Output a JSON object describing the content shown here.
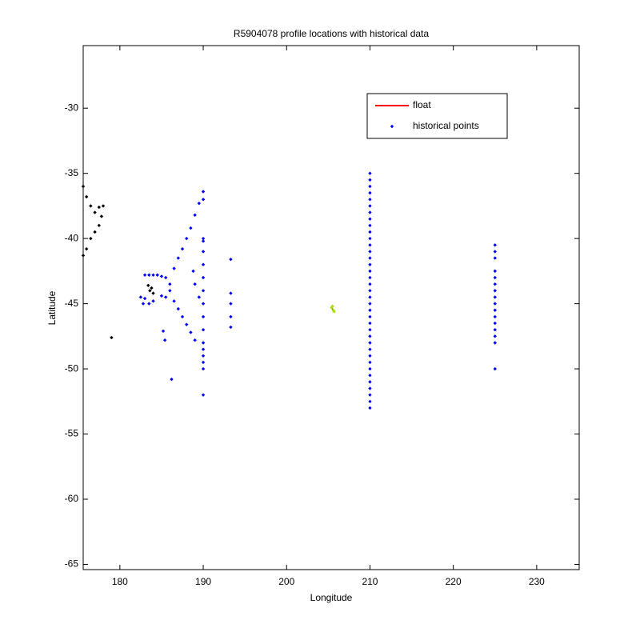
{
  "chart_data": {
    "type": "scatter",
    "title": "R5904078 profile locations with historical data",
    "x_label": "Longitude",
    "y_label": "Latitude",
    "xlim": [
      175.6,
      235.1
    ],
    "ylim": [
      -65.4,
      -25.2
    ],
    "xticks": [
      180,
      190,
      200,
      210,
      220,
      230
    ],
    "yticks": [
      -30,
      -35,
      -40,
      -45,
      -50,
      -55,
      -60,
      -65
    ],
    "legend_position": "upper right",
    "series": [
      {
        "name": "float",
        "color": "#ff0000",
        "style": "line",
        "x": [
          205.4,
          205.6,
          205.5
        ],
        "y": [
          -45.3,
          -45.5,
          -45.4
        ]
      },
      {
        "name": "historical points",
        "color": "#0000ff",
        "style": "marker",
        "x": [
          210,
          210,
          210,
          210,
          210,
          210,
          210,
          210,
          210,
          210,
          210,
          210,
          210,
          210,
          210,
          210,
          210,
          210,
          210,
          210,
          210,
          210,
          210,
          210,
          210,
          210,
          210,
          210,
          210,
          210,
          210,
          210,
          210,
          210,
          210,
          210,
          210,
          225,
          225,
          225,
          225,
          225,
          225,
          225,
          225,
          225,
          225,
          225,
          225,
          225,
          225,
          225,
          225,
          190,
          190,
          190,
          190,
          190,
          190,
          190,
          190,
          190,
          190,
          190,
          190,
          190,
          190,
          190,
          190,
          190,
          193.3,
          193.3,
          193.3,
          193.3,
          193.3,
          186.5,
          187,
          187.5,
          188,
          188.5,
          189,
          189.5,
          186.5,
          187,
          187.5,
          188,
          188.5,
          189,
          183,
          183.5,
          184,
          184.5,
          185,
          185.5,
          186,
          186,
          185.5,
          185,
          182.5,
          183,
          183.5,
          184,
          185.2,
          185.4,
          186.2,
          188.8,
          189,
          189.5,
          182.8
        ],
        "y": [
          -35,
          -35.5,
          -36,
          -36.5,
          -37,
          -37.5,
          -38,
          -38.5,
          -39,
          -39.5,
          -40,
          -40.5,
          -41,
          -41.5,
          -42,
          -42.5,
          -43,
          -43.5,
          -44,
          -44.5,
          -45,
          -45.5,
          -46,
          -46.5,
          -47,
          -47.5,
          -48,
          -48.5,
          -49,
          -49.5,
          -50,
          -50.5,
          -51,
          -51.5,
          -52,
          -52.5,
          -53,
          -40.5,
          -41,
          -41.5,
          -42.5,
          -43,
          -43.5,
          -44,
          -44.5,
          -45,
          -45.5,
          -46,
          -46.5,
          -47,
          -47.5,
          -48,
          -50,
          -36.4,
          -37,
          -40,
          -40.2,
          -41,
          -42,
          -43,
          -44,
          -45,
          -46,
          -47,
          -48,
          -48.5,
          -49,
          -49.5,
          -50,
          -52,
          -41.6,
          -44.2,
          -45,
          -46,
          -46.8,
          -42.3,
          -41.5,
          -40.8,
          -40,
          -39.2,
          -38.2,
          -37.3,
          -44.8,
          -45.4,
          -46,
          -46.6,
          -47.2,
          -47.8,
          -42.8,
          -42.8,
          -42.8,
          -42.8,
          -42.9,
          -43,
          -43.5,
          -44,
          -44.5,
          -44.4,
          -44.5,
          -44.6,
          -45,
          -44.8,
          -47.1,
          -47.8,
          -50.8,
          -42.5,
          -43.5,
          -44.5,
          -45
        ]
      },
      {
        "color": "#000000",
        "style": "marker",
        "x": [
          175.6,
          176,
          176.5,
          177,
          177.5,
          178,
          177.8,
          177.5,
          177,
          176.5,
          176,
          175.6,
          183.4,
          183.6,
          183.8,
          184,
          179
        ],
        "y": [
          -36,
          -36.8,
          -37.5,
          -38,
          -37.6,
          -37.5,
          -38.3,
          -39,
          -39.5,
          -40,
          -40.8,
          -41.3,
          -43.6,
          -44,
          -43.8,
          -44.2,
          -47.6
        ]
      },
      {
        "color": "#aadd00",
        "style": "marker",
        "x": [
          205.4,
          205.6,
          205.5,
          205.7
        ],
        "y": [
          -45.3,
          -45.5,
          -45.2,
          -45.6
        ]
      }
    ]
  }
}
